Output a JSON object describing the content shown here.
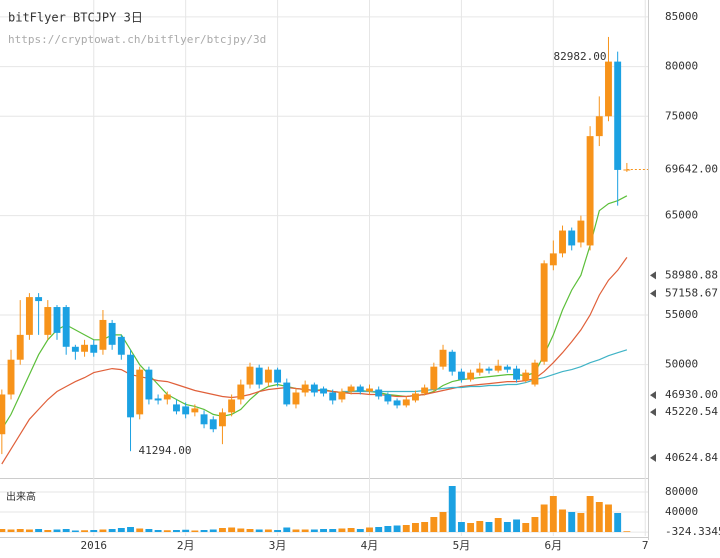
{
  "chart_data": {
    "type": "candlestick",
    "title": "bitFlyer BTCJPY 3日",
    "subtitle": "https://cryptowat.ch/bitflyer/btcjpy/3d",
    "volume_label": "出来高",
    "up_color": "#f7931a",
    "down_color": "#1ba1e2",
    "grid": true,
    "xlim": [
      -0.2,
      70.3
    ],
    "xticks": [
      {
        "value": 10,
        "label": "2016"
      },
      {
        "value": 20,
        "label": "2月"
      },
      {
        "value": 30,
        "label": "3月"
      },
      {
        "value": 40,
        "label": "4月"
      },
      {
        "value": 50,
        "label": "5月"
      },
      {
        "value": 60,
        "label": "6月"
      },
      {
        "value": 70,
        "label": "7"
      }
    ],
    "ylim": [
      39400,
      86700
    ],
    "yticks": [
      50000,
      55000,
      65000,
      75000,
      80000,
      85000
    ],
    "last_price": {
      "value": 69642,
      "label": "69642.00"
    },
    "price_markers": [
      {
        "value": 58980.88,
        "label": "58980.88"
      },
      {
        "value": 57158.67,
        "label": "57158.67"
      },
      {
        "value": 46930,
        "label": "46930.00"
      },
      {
        "value": 45220.54,
        "label": "45220.54"
      },
      {
        "value": 40624.84,
        "label": "40624.84"
      }
    ],
    "annotations": [
      {
        "index": 66,
        "value": 82982,
        "label": "82982.00"
      },
      {
        "index": 14,
        "value": 41294,
        "label": "41294.00"
      }
    ],
    "open": [
      43000,
      47000,
      50500,
      53000,
      56800,
      53000,
      55800,
      55800,
      51800,
      51300,
      52000,
      51500,
      54200,
      52800,
      51000,
      45000,
      49500,
      46600,
      46500,
      46000,
      45800,
      45200,
      45000,
      44500,
      43800,
      45200,
      46500,
      48000,
      49700,
      48200,
      49500,
      48200,
      46000,
      47200,
      48000,
      47600,
      47200,
      46500,
      47300,
      47800,
      47300,
      47500,
      47000,
      46400,
      45900,
      46400,
      47100,
      47500,
      49800,
      51300,
      49300,
      48500,
      49200,
      49600,
      49400,
      49800,
      49600,
      48400,
      48000,
      50300,
      60000,
      61200,
      63500,
      62300,
      62000,
      73000,
      75000,
      80500,
      69600
    ],
    "high": [
      47500,
      51500,
      56500,
      57200,
      57200,
      56500,
      56000,
      56000,
      52000,
      52500,
      52500,
      55500,
      54500,
      53000,
      51500,
      49800,
      49800,
      47000,
      47300,
      46500,
      46200,
      46000,
      45400,
      44800,
      45600,
      47000,
      48500,
      50200,
      50000,
      49800,
      49700,
      48600,
      47600,
      48400,
      48200,
      47800,
      47500,
      47600,
      48000,
      48000,
      48000,
      47800,
      47200,
      46600,
      46800,
      47400,
      48000,
      50200,
      52000,
      51500,
      49600,
      49500,
      50200,
      49800,
      50500,
      50000,
      49900,
      49500,
      50500,
      60500,
      62500,
      64000,
      63800,
      65000,
      74000,
      77000,
      82982,
      81500,
      70300
    ],
    "low": [
      41000,
      46500,
      50000,
      52500,
      53000,
      52500,
      52500,
      51000,
      50500,
      50800,
      50800,
      51000,
      51500,
      50500,
      41294,
      44500,
      46000,
      46000,
      46000,
      45000,
      44600,
      44800,
      43600,
      43200,
      42000,
      44800,
      46000,
      47600,
      47600,
      47800,
      47800,
      45800,
      45600,
      46800,
      46800,
      46800,
      46000,
      46200,
      47000,
      47000,
      47000,
      46500,
      46000,
      45600,
      45700,
      46200,
      46900,
      47300,
      49500,
      48900,
      48200,
      48300,
      48900,
      49100,
      49200,
      49200,
      48200,
      48200,
      47800,
      50000,
      59500,
      60800,
      61500,
      61800,
      61500,
      72000,
      74500,
      66000,
      69400
    ],
    "close": [
      47000,
      50500,
      53000,
      56800,
      56400,
      55800,
      53200,
      51800,
      51300,
      52000,
      51200,
      54500,
      52000,
      51000,
      44700,
      49500,
      46500,
      46400,
      47000,
      45300,
      45000,
      45600,
      44000,
      43500,
      45200,
      46500,
      48000,
      49800,
      48000,
      49500,
      48200,
      46000,
      47200,
      48000,
      47200,
      47100,
      46400,
      47300,
      47800,
      47300,
      47600,
      46800,
      46300,
      45900,
      46500,
      47100,
      47700,
      49800,
      51500,
      49300,
      48500,
      49200,
      49600,
      49400,
      49900,
      49500,
      48500,
      49200,
      50200,
      60200,
      61200,
      63500,
      62000,
      64500,
      73000,
      75000,
      80500,
      69600,
      69642
    ],
    "volume": [
      6000,
      5000,
      6000,
      5000,
      6000,
      4000,
      5000,
      6000,
      3000,
      3500,
      4000,
      5000,
      6000,
      8000,
      10000,
      7000,
      6000,
      4000,
      3500,
      4000,
      4500,
      3000,
      4000,
      5000,
      8000,
      9000,
      7000,
      6000,
      5000,
      5000,
      4000,
      9000,
      5000,
      5000,
      5000,
      6000,
      6000,
      7000,
      8000,
      6000,
      9000,
      10000,
      12000,
      13000,
      14000,
      18000,
      20000,
      30000,
      40000,
      92000,
      20000,
      18000,
      22000,
      20000,
      28000,
      20000,
      25000,
      18000,
      30000,
      55000,
      72000,
      45000,
      40000,
      38000,
      72000,
      60000,
      55000,
      38000,
      1500
    ],
    "vlim": [
      -8000,
      100000
    ],
    "vticks": [
      -324.33456,
      40000,
      80000
    ],
    "series": [
      {
        "color": "#5cbf3a",
        "values": [
          43500,
          45000,
          47000,
          49000,
          51000,
          52500,
          53500,
          54000,
          53500,
          53000,
          52500,
          52500,
          53000,
          53000,
          51500,
          50000,
          49000,
          48000,
          47000,
          46500,
          46000,
          45800,
          45500,
          45000,
          44800,
          45000,
          45500,
          46500,
          47300,
          47800,
          48000,
          47800,
          47600,
          47500,
          47400,
          47500,
          47300,
          47200,
          47300,
          47400,
          47300,
          47200,
          47000,
          46900,
          46800,
          46900,
          47000,
          47300,
          47900,
          48300,
          48500,
          48600,
          48700,
          48800,
          48900,
          49000,
          49000,
          48900,
          49200,
          51000,
          53000,
          55500,
          57500,
          59000,
          62000,
          65500,
          66200,
          66500,
          67000
        ]
      },
      {
        "color": "#e0603a",
        "values": [
          40000,
          41500,
          43000,
          44500,
          45500,
          46500,
          47300,
          47800,
          48300,
          48700,
          49200,
          49400,
          49600,
          49500,
          49000,
          48800,
          48600,
          48400,
          48300,
          48000,
          47700,
          47400,
          47200,
          47000,
          46800,
          46700,
          46800,
          47000,
          47300,
          47500,
          47600,
          47700,
          47600,
          47500,
          47400,
          47400,
          47300,
          47200,
          47100,
          47100,
          47000,
          47000,
          46900,
          46800,
          46800,
          46900,
          47000,
          47200,
          47400,
          47600,
          47800,
          47900,
          48000,
          48100,
          48200,
          48300,
          48300,
          48400,
          48600,
          49300,
          50200,
          51200,
          52300,
          53500,
          55000,
          57000,
          58500,
          59500,
          60800
        ]
      },
      {
        "color": "#3fb3c6",
        "values": [
          null,
          null,
          null,
          null,
          null,
          null,
          null,
          null,
          null,
          null,
          null,
          null,
          null,
          null,
          null,
          null,
          null,
          null,
          null,
          null,
          null,
          null,
          null,
          null,
          null,
          null,
          null,
          null,
          null,
          null,
          null,
          null,
          null,
          null,
          null,
          null,
          null,
          47300,
          47300,
          47300,
          47300,
          47300,
          47300,
          47300,
          47300,
          47300,
          47400,
          47500,
          47600,
          47700,
          47700,
          47800,
          47800,
          47900,
          47900,
          48000,
          48000,
          48200,
          48500,
          48700,
          49000,
          49300,
          49500,
          49800,
          50200,
          50500,
          50900,
          51200,
          51500
        ]
      }
    ]
  }
}
